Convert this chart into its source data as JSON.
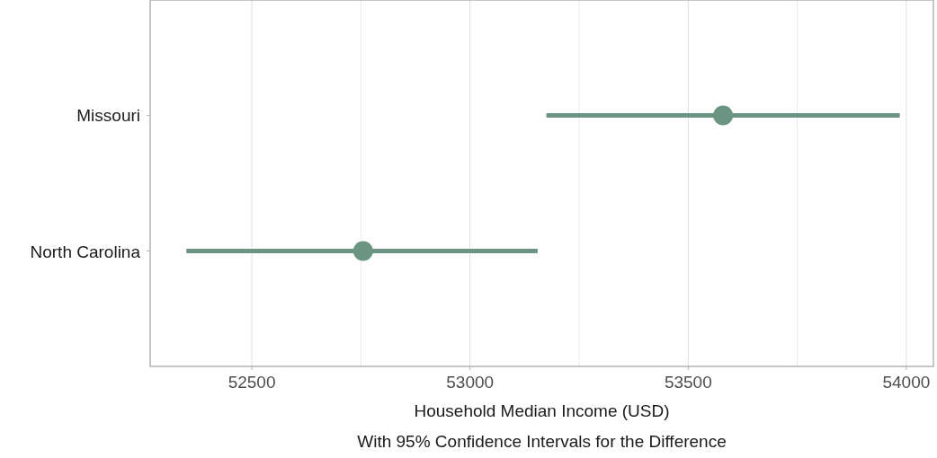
{
  "chart_data": {
    "type": "scatter",
    "orientation": "horizontal",
    "categories": [
      "Missouri",
      "North Carolina"
    ],
    "values": [
      53580,
      52755
    ],
    "errors": [
      [
        53175,
        53985
      ],
      [
        52350,
        53155
      ]
    ],
    "color": "#6b9582",
    "marker": "circle",
    "xlim": [
      52267,
      54062
    ],
    "xticks": [
      52500,
      {
        "value": 52750,
        "label": null
      },
      53000,
      {
        "value": 53250,
        "label": null
      },
      53500,
      {
        "value": 53750,
        "label": null
      },
      54000
    ],
    "grid": "x",
    "xlabel": "Household Median Income (USD)",
    "annotations": [
      "With 95% Confidence Intervals for the Difference"
    ]
  }
}
